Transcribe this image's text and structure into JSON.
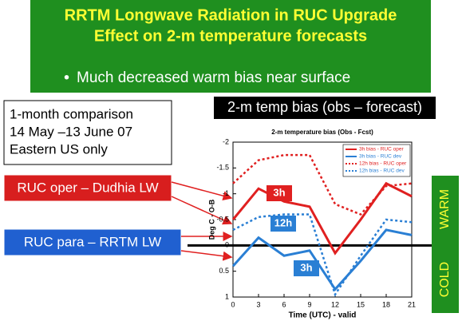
{
  "slide": {
    "title_lines": [
      "RRTM Longwave Radiation in RUC Upgrade",
      "Effect on 2-m temperature forecasts"
    ],
    "bullet": "Much decreased warm bias near surface",
    "info_lines": [
      "1-month comparison",
      "14 May –13 June 07",
      "Eastern US only"
    ],
    "chart_heading": "2-m temp bias (obs – forecast)",
    "oper_label": "RUC oper – Dudhia LW",
    "para_label": "RUC para – RRTM LW",
    "warm": "WARM",
    "cold": "COLD"
  },
  "chart_data": {
    "type": "line",
    "title": "2-m temperature bias (Obs - Fcst)",
    "x_label": "Time (UTC) - valid",
    "y_label": "Deg C - O-B",
    "x": [
      0,
      3,
      6,
      9,
      12,
      15,
      18,
      21
    ],
    "xlim": [
      0,
      21
    ],
    "xticks": [
      0,
      3,
      6,
      9,
      12,
      15,
      18,
      21
    ],
    "ylim": [
      -2,
      1
    ],
    "y_reversed": true,
    "yticks": [
      -2,
      -1.5,
      -1,
      -0.5,
      0,
      0.5,
      1
    ],
    "annotations": [
      "3h",
      "12h",
      "3h"
    ],
    "legend": "upper right",
    "series": [
      {
        "name": "3h bias - RUC oper",
        "color": "#e02020",
        "dash": false,
        "values": [
          -0.5,
          -1.1,
          -0.85,
          -0.75,
          0.15,
          -0.5,
          -1.2,
          -0.95
        ]
      },
      {
        "name": "3h bias - RUC dev",
        "color": "#2a7fd4",
        "dash": false,
        "values": [
          0.4,
          -0.15,
          0.2,
          0.1,
          0.85,
          0.3,
          -0.3,
          -0.2
        ]
      },
      {
        "name": "12h bias - RUC oper",
        "color": "#e02020",
        "dash": true,
        "values": [
          -1.2,
          -1.65,
          -1.75,
          -1.75,
          -0.8,
          -0.6,
          -1.15,
          -1.2
        ]
      },
      {
        "name": "12h bias - RUC dev",
        "color": "#2a7fd4",
        "dash": true,
        "values": [
          -0.3,
          -0.55,
          -0.6,
          -0.6,
          0.95,
          0.2,
          -0.5,
          -0.45
        ]
      }
    ]
  }
}
